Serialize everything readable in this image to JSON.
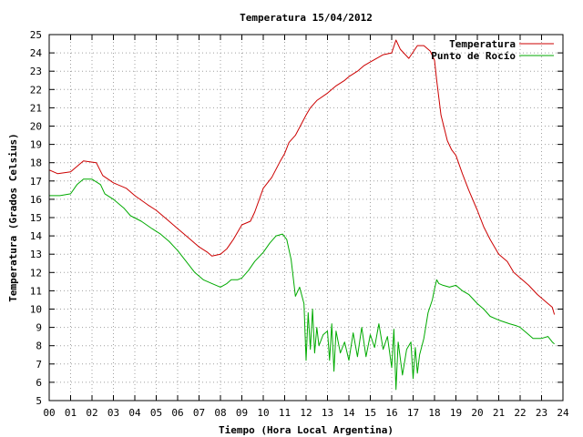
{
  "chart_data": {
    "type": "line",
    "title": "Temperatura 15/04/2012",
    "xlabel": "Tiempo (Hora Local Argentina)",
    "ylabel": "Temperatura (Grados Celsius)",
    "xlim": [
      0,
      24
    ],
    "ylim": [
      5,
      25
    ],
    "grid": true,
    "legend_position": "top-right",
    "x_ticks": [
      "00",
      "01",
      "02",
      "03",
      "04",
      "05",
      "06",
      "07",
      "08",
      "09",
      "10",
      "11",
      "12",
      "13",
      "14",
      "15",
      "16",
      "17",
      "18",
      "19",
      "20",
      "21",
      "22",
      "23",
      "24"
    ],
    "y_ticks": [
      "5",
      "6",
      "7",
      "8",
      "9",
      "10",
      "11",
      "12",
      "13",
      "14",
      "15",
      "16",
      "17",
      "18",
      "19",
      "20",
      "21",
      "22",
      "23",
      "24",
      "25"
    ],
    "series": [
      {
        "name": "Temperatura",
        "color": "#cc0000",
        "x": [
          0,
          0.4,
          1.0,
          1.4,
          1.6,
          2.2,
          2.5,
          3.0,
          3.6,
          4.0,
          4.6,
          5.0,
          5.5,
          6.0,
          6.5,
          7.0,
          7.4,
          7.6,
          8.0,
          8.3,
          8.6,
          9.0,
          9.4,
          9.6,
          10.0,
          10.4,
          10.8,
          11.0,
          11.2,
          11.5,
          12.0,
          12.2,
          12.5,
          13.0,
          13.4,
          13.8,
          14.0,
          14.4,
          14.7,
          15.0,
          15.3,
          15.6,
          16.0,
          16.2,
          16.4,
          16.8,
          17.2,
          17.5,
          17.8,
          18.0,
          18.1,
          18.3,
          18.6,
          18.8,
          19.0,
          19.3,
          19.6,
          20.0,
          20.3,
          20.6,
          21.0,
          21.4,
          21.7,
          22.0,
          22.4,
          22.8,
          23.2,
          23.5,
          23.6
        ],
        "y": [
          17.6,
          17.4,
          17.5,
          17.9,
          18.1,
          18.0,
          17.3,
          16.9,
          16.6,
          16.2,
          15.7,
          15.4,
          14.9,
          14.4,
          13.9,
          13.4,
          13.1,
          12.9,
          13.0,
          13.3,
          13.8,
          14.6,
          14.8,
          15.3,
          16.6,
          17.2,
          18.1,
          18.5,
          19.1,
          19.5,
          20.6,
          21.0,
          21.4,
          21.8,
          22.2,
          22.5,
          22.7,
          23.0,
          23.3,
          23.5,
          23.7,
          23.9,
          24.0,
          24.7,
          24.2,
          23.7,
          24.4,
          24.4,
          24.1,
          23.6,
          22.5,
          20.6,
          19.2,
          18.7,
          18.4,
          17.4,
          16.5,
          15.4,
          14.5,
          13.8,
          13.0,
          12.6,
          12.0,
          11.7,
          11.3,
          10.8,
          10.4,
          10.1,
          9.7
        ]
      },
      {
        "name": "Punto de Rocío",
        "color": "#00aa00",
        "x": [
          0,
          0.5,
          1.0,
          1.3,
          1.6,
          2.0,
          2.4,
          2.6,
          3.0,
          3.5,
          3.8,
          4.3,
          4.8,
          5.2,
          5.6,
          6.0,
          6.4,
          6.8,
          7.2,
          7.6,
          8.0,
          8.3,
          8.5,
          8.8,
          9.0,
          9.3,
          9.6,
          10.0,
          10.3,
          10.6,
          10.9,
          11.1,
          11.3,
          11.5,
          11.7,
          11.9,
          12.0,
          12.1,
          12.2,
          12.3,
          12.4,
          12.5,
          12.6,
          12.8,
          13.0,
          13.1,
          13.2,
          13.3,
          13.4,
          13.6,
          13.8,
          14.0,
          14.2,
          14.4,
          14.6,
          14.8,
          15.0,
          15.2,
          15.4,
          15.6,
          15.8,
          16.0,
          16.1,
          16.2,
          16.3,
          16.5,
          16.7,
          16.9,
          17.0,
          17.1,
          17.2,
          17.3,
          17.5,
          17.7,
          17.9,
          18.0,
          18.1,
          18.2,
          18.4,
          18.7,
          19.0,
          19.3,
          19.6,
          20.0,
          20.3,
          20.6,
          21.0,
          21.5,
          21.8,
          22.0,
          22.4,
          22.6,
          23.0,
          23.3,
          23.5,
          23.6
        ],
        "y": [
          16.2,
          16.2,
          16.3,
          16.8,
          17.1,
          17.1,
          16.8,
          16.3,
          16.0,
          15.5,
          15.1,
          14.8,
          14.4,
          14.1,
          13.7,
          13.2,
          12.6,
          12.0,
          11.6,
          11.4,
          11.2,
          11.4,
          11.6,
          11.6,
          11.7,
          12.1,
          12.6,
          13.1,
          13.6,
          14.0,
          14.1,
          13.8,
          12.7,
          10.7,
          11.2,
          10.3,
          7.2,
          9.8,
          7.8,
          10.0,
          7.6,
          9.0,
          8.0,
          8.6,
          8.8,
          7.2,
          9.2,
          6.6,
          8.8,
          7.6,
          8.2,
          7.2,
          8.7,
          7.4,
          9.0,
          7.4,
          8.6,
          7.9,
          9.2,
          7.8,
          8.5,
          6.8,
          8.9,
          5.6,
          8.2,
          6.4,
          7.8,
          8.2,
          6.2,
          7.9,
          6.5,
          7.5,
          8.4,
          9.8,
          10.5,
          11.1,
          11.6,
          11.4,
          11.3,
          11.2,
          11.3,
          11.0,
          10.8,
          10.3,
          10.0,
          9.6,
          9.4,
          9.2,
          9.1,
          9.0,
          8.6,
          8.4,
          8.4,
          8.5,
          8.2,
          8.1
        ]
      }
    ]
  }
}
